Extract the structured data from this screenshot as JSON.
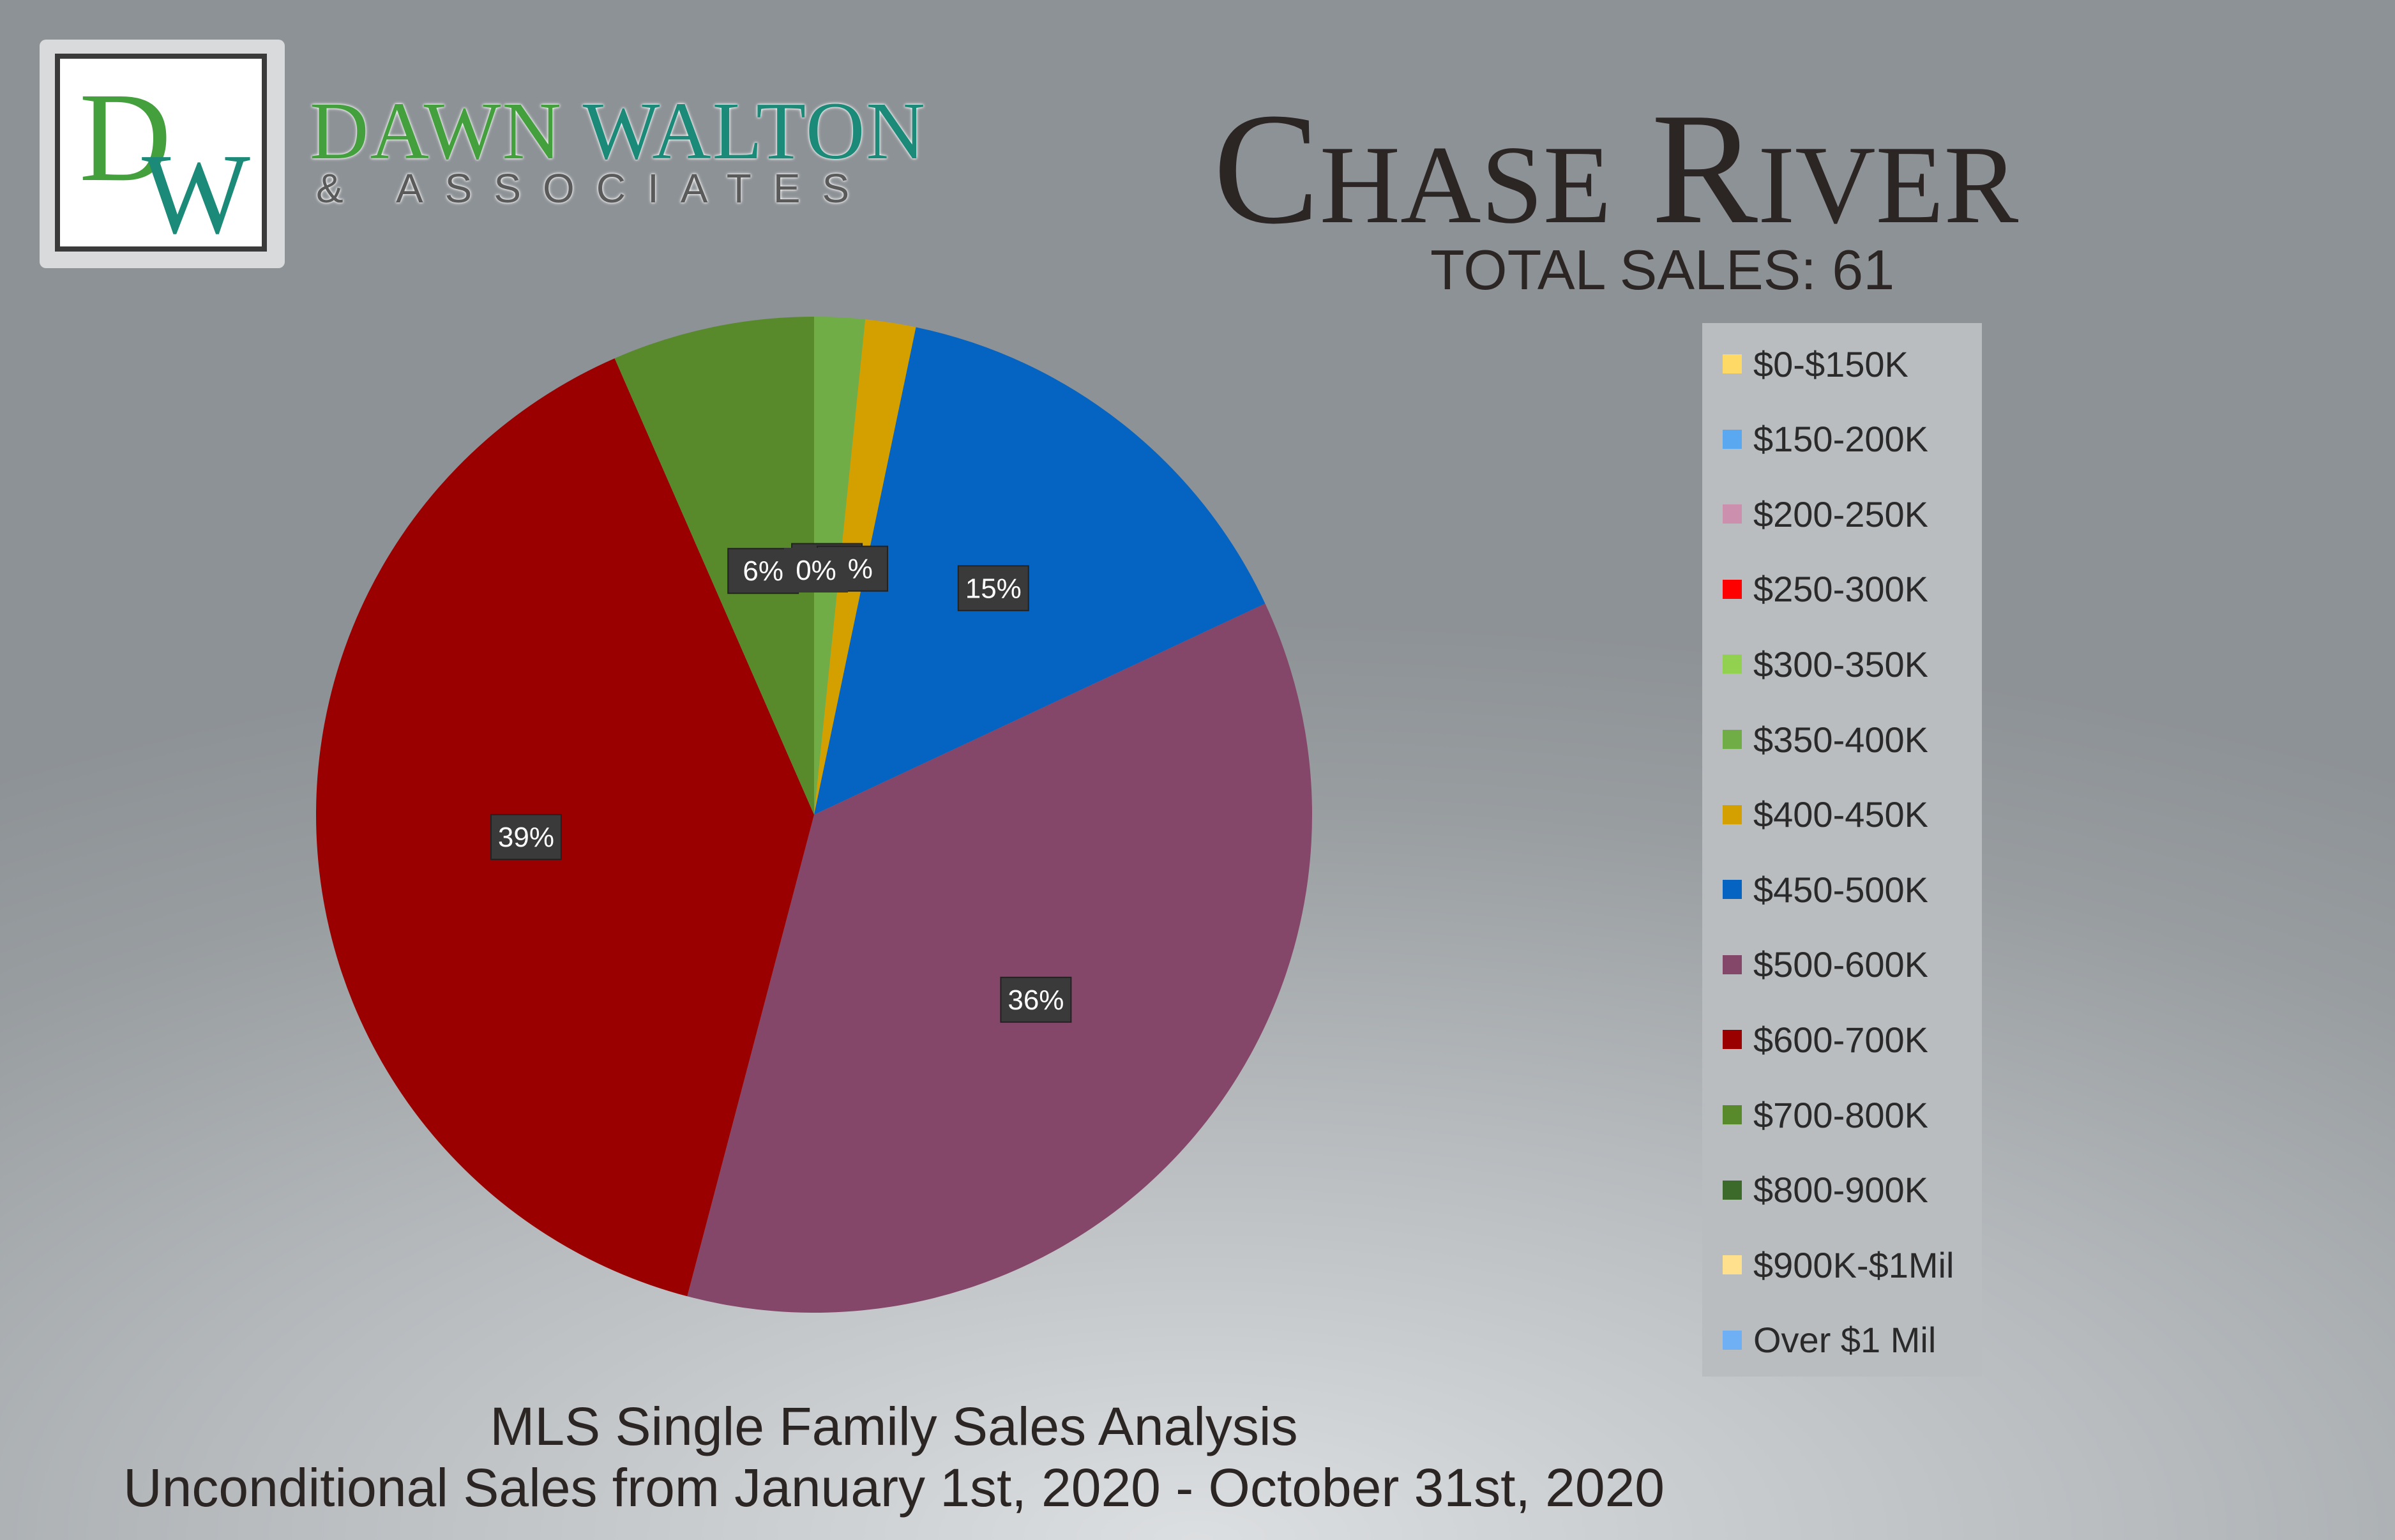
{
  "brand": {
    "name_part1": "DAWN ",
    "name_part2": "WALTON",
    "subtitle": "& ASSOCIATES",
    "monogram_d": "D",
    "monogram_w": "W"
  },
  "header": {
    "title": "Chase River",
    "total_sales": "TOTAL SALES: 61"
  },
  "footer": {
    "line1": "MLS Single Family Sales Analysis",
    "line2": "Unconditional Sales from January 1st, 2020 - October 31st, 2020"
  },
  "chart_data": {
    "type": "pie",
    "title": "Chase River",
    "categories": [
      "$0-$150K",
      "$150-200K",
      "$200-250K",
      "$250-300K",
      "$300-350K",
      "$350-400K",
      "$400-450K",
      "$450-500K",
      "$500-600K",
      "$600-700K",
      "$700-800K",
      "$800-900K",
      "$900K-$1Mil",
      "Over $1 Mil"
    ],
    "values": [
      0,
      0,
      0,
      0,
      0,
      1,
      1,
      9,
      22,
      24,
      4,
      0,
      0,
      0
    ],
    "percent_labels": [
      "0%",
      "0%",
      "0%",
      "0%",
      "0%",
      "2%",
      "2%",
      "15%",
      "36%",
      "39%",
      "6%",
      "0%",
      "0%",
      "0%"
    ],
    "colors": [
      "#ffd966",
      "#5aa9f0",
      "#cc8fad",
      "#ff0000",
      "#92d050",
      "#70ad47",
      "#d4a000",
      "#0563c1",
      "#844669",
      "#9b0000",
      "#588a2b",
      "#3b6a2a",
      "#ffe08c",
      "#6fb0f5"
    ],
    "legend_position": "right"
  }
}
